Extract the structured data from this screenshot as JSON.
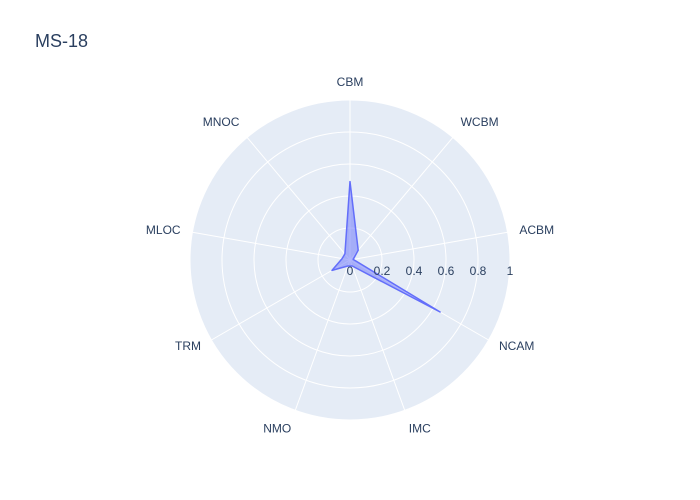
{
  "chart_data": {
    "type": "radar",
    "title": "MS-18",
    "categories": [
      "CBM",
      "WCBM",
      "ACBM",
      "NCAM",
      "IMC",
      "NMO",
      "TRM",
      "MLOC",
      "MNOC"
    ],
    "series": [
      {
        "values": [
          0.49,
          0.08,
          0.02,
          0.65,
          0.04,
          0.04,
          0.13,
          0.05,
          0.05
        ]
      }
    ],
    "radial_range": [
      0,
      1
    ],
    "radial_ticks": [
      "0",
      "0.2",
      "0.4",
      "0.6",
      "0.8",
      "1"
    ],
    "radial_tick_values": [
      0,
      0.2,
      0.4,
      0.6,
      0.8,
      1
    ],
    "colors": {
      "polar_bg": "#e5ecf6",
      "grid": "#ffffff",
      "series_line": "#636efa",
      "series_fill": "rgba(99,110,250,0.5)"
    }
  }
}
